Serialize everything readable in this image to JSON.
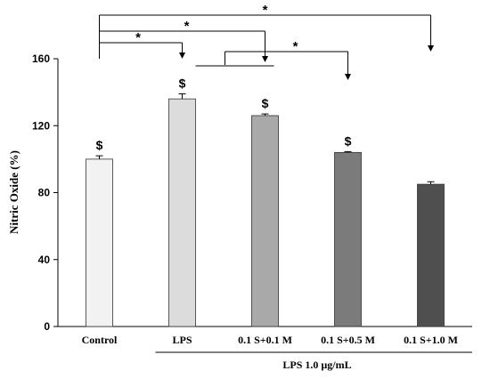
{
  "chart_data": {
    "type": "bar",
    "categories": [
      "Control",
      "LPS",
      "0.1 S+0.1 M",
      "0.1 S+0.5 M",
      "0.1 S+1.0 M"
    ],
    "values": [
      100,
      136,
      126,
      104,
      85
    ],
    "errors": [
      2,
      3,
      1,
      0.5,
      1.5
    ],
    "bar_colors": [
      "#f2f2f2",
      "#dcdcdc",
      "#a9a9a9",
      "#7b7b7b",
      "#4f4f4f"
    ],
    "ylabel": "Nitric Oxide (%)",
    "ylim": [
      0,
      160
    ],
    "yticks": [
      "0",
      "40",
      "80",
      "120",
      "160"
    ],
    "group_label": "LPS 1.0 µg/mL",
    "significance_marks": [
      {
        "category": "Control",
        "symbol": "$"
      },
      {
        "category": "LPS",
        "symbol": "$"
      },
      {
        "category": "0.1 S+0.1 M",
        "symbol": "$"
      },
      {
        "category": "0.1 S+0.5 M",
        "symbol": "$"
      }
    ],
    "comparison_brackets": [
      {
        "from": "Control",
        "to": "LPS",
        "symbol": "*"
      },
      {
        "from": "Control",
        "to": "0.1 S+0.1 M",
        "symbol": "*"
      },
      {
        "from": "Control",
        "to": "0.1 S+1.0 M",
        "symbol": "*"
      },
      {
        "from": "0.1 S+0.1 M",
        "to": "0.1 S+0.5 M",
        "symbol": "*"
      }
    ],
    "grid": false
  }
}
